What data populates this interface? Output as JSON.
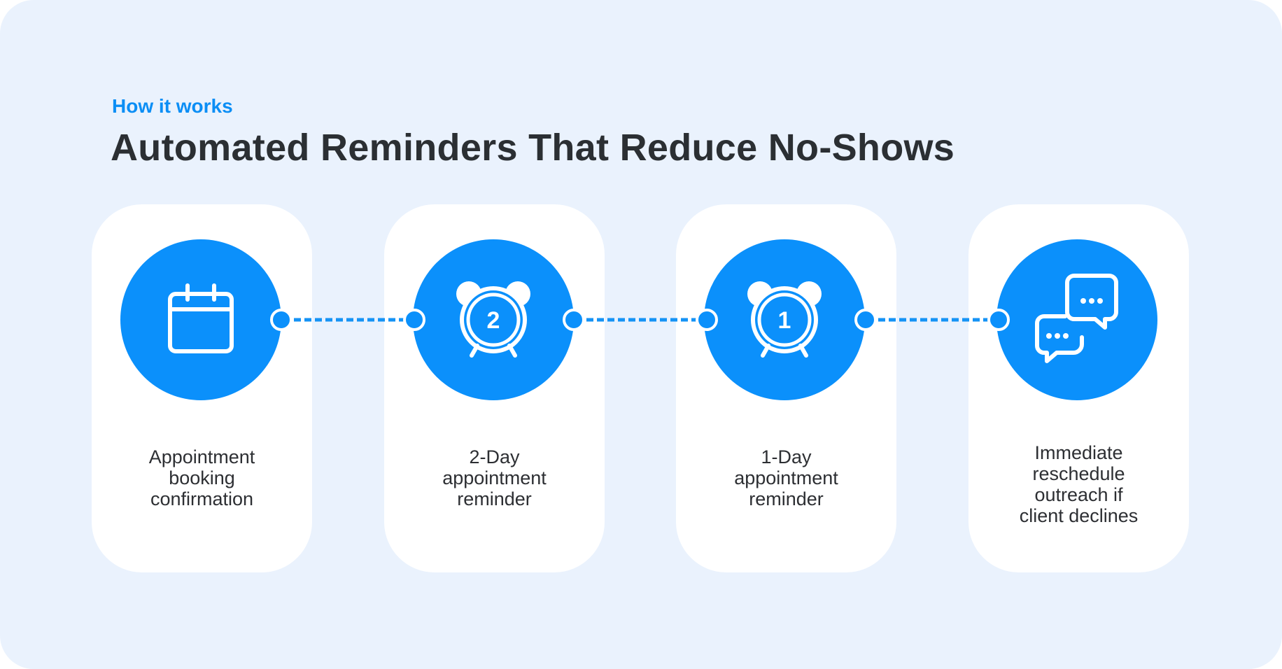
{
  "header": {
    "eyebrow": "How it works",
    "title": "Automated Reminders That Reduce No-Shows"
  },
  "colors": {
    "accent": "#0b90fb",
    "background": "#eaf2fd",
    "card": "#ffffff",
    "text": "#2d2f33"
  },
  "steps": [
    {
      "icon": "calendar-icon",
      "label": "Appointment booking confirmation"
    },
    {
      "icon": "alarm-clock-icon",
      "badge": "2",
      "label": "2-Day appointment reminder"
    },
    {
      "icon": "alarm-clock-icon",
      "badge": "1",
      "label": "1-Day appointment reminder"
    },
    {
      "icon": "chat-bubbles-icon",
      "label": "Immediate reschedule outreach if client declines"
    }
  ]
}
